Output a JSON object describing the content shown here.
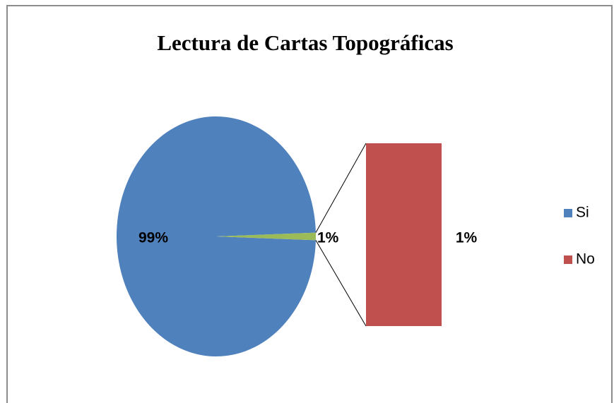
{
  "chart_data": {
    "type": "pie",
    "title": "Lectura de Cartas Topográficas",
    "categories": [
      "Si",
      "No"
    ],
    "values": [
      99,
      1
    ],
    "value_labels": [
      "99%",
      "1%"
    ],
    "colors": [
      "#4f81bd",
      "#c0504d"
    ],
    "other_color": "#9bbb59",
    "legend": "right"
  }
}
